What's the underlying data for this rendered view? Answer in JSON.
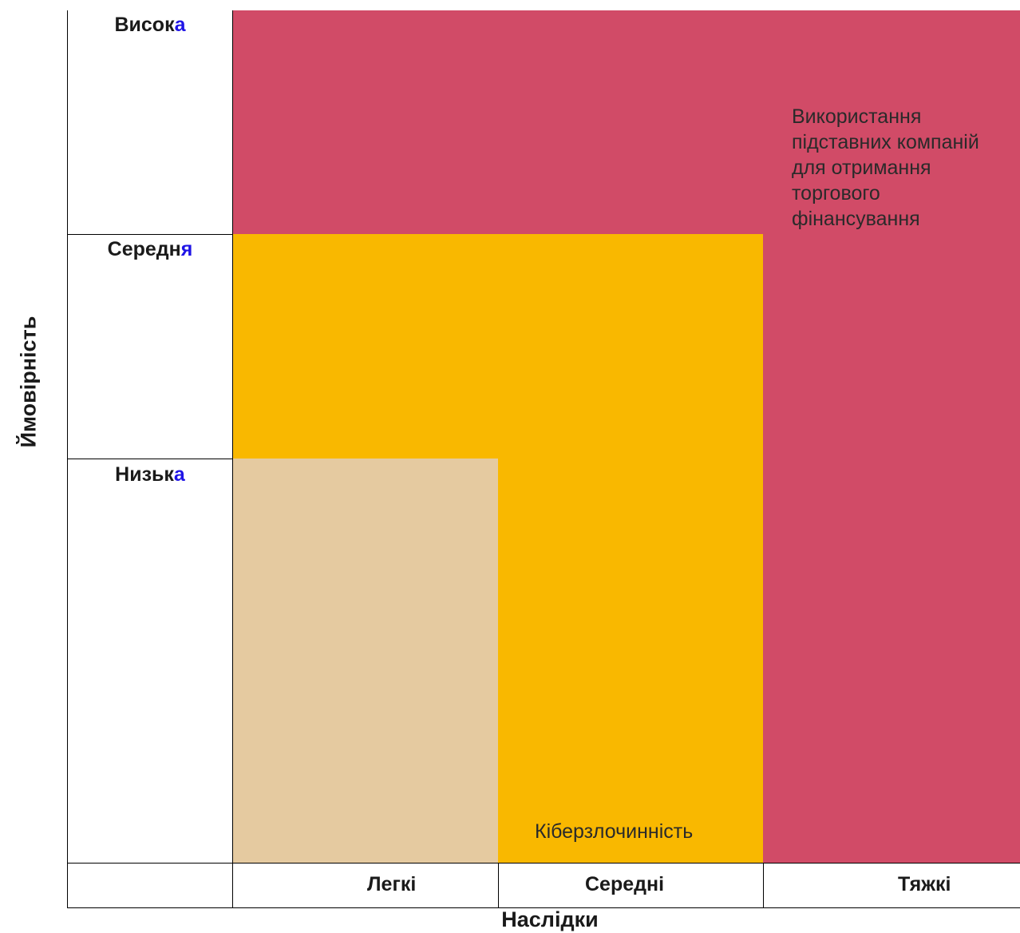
{
  "y_axis": {
    "title": "Ймовірність",
    "levels": [
      {
        "stem": "Висок",
        "ending": "а"
      },
      {
        "stem": "Середн",
        "ending": "я"
      },
      {
        "stem": "Низьк",
        "ending": "а"
      }
    ]
  },
  "x_axis": {
    "title": "Наслідки",
    "levels": [
      "Легкі",
      "Середні",
      "Тяжкі"
    ]
  },
  "zones": {
    "high": {
      "label": "Використання підставних компаній для отримання торгового фінансування",
      "color": "#d14b67"
    },
    "medium": {
      "label": "Кіберзлочинність",
      "color": "#f9b800"
    },
    "low": {
      "label": "",
      "color": "#e5caa0"
    }
  },
  "accent_color": "#1f14e6"
}
